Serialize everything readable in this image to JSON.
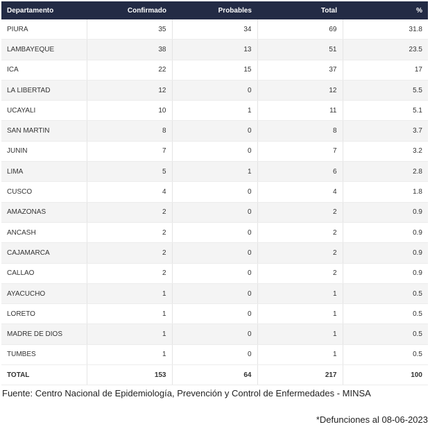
{
  "table": {
    "headers": [
      "Departamento",
      "Confirmado",
      "Probables",
      "Total",
      "%"
    ],
    "rows": [
      [
        "PIURA",
        35,
        34,
        69,
        31.8
      ],
      [
        "LAMBAYEQUE",
        38,
        13,
        51,
        23.5
      ],
      [
        "ICA",
        22,
        15,
        37,
        17
      ],
      [
        "LA LIBERTAD",
        12,
        0,
        12,
        5.5
      ],
      [
        "UCAYALI",
        10,
        1,
        11,
        5.1
      ],
      [
        "SAN MARTIN",
        8,
        0,
        8,
        3.7
      ],
      [
        "JUNIN",
        7,
        0,
        7,
        3.2
      ],
      [
        "LIMA",
        5,
        1,
        6,
        2.8
      ],
      [
        "CUSCO",
        4,
        0,
        4,
        1.8
      ],
      [
        "AMAZONAS",
        2,
        0,
        2,
        0.9
      ],
      [
        "ANCASH",
        2,
        0,
        2,
        0.9
      ],
      [
        "CAJAMARCA",
        2,
        0,
        2,
        0.9
      ],
      [
        "CALLAO",
        2,
        0,
        2,
        0.9
      ],
      [
        "AYACUCHO",
        1,
        0,
        1,
        0.5
      ],
      [
        "LORETO",
        1,
        0,
        1,
        0.5
      ],
      [
        "MADRE DE DIOS",
        1,
        0,
        1,
        0.5
      ],
      [
        "TUMBES",
        1,
        0,
        1,
        0.5
      ]
    ],
    "total": [
      "TOTAL",
      153,
      64,
      217,
      100
    ]
  },
  "footer": {
    "source": "Fuente: Centro Nacional de Epidemiología, Prevención y Control de Enfermedades - MINSA",
    "note": "*Defunciones al 08-06-2023"
  }
}
